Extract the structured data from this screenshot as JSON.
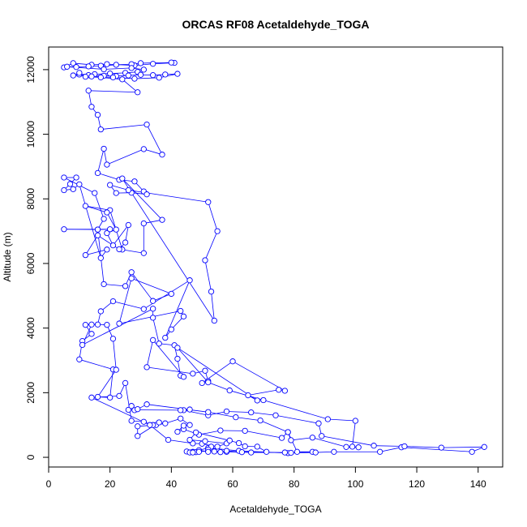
{
  "chart_data": {
    "type": "line",
    "title": "ORCAS RF08 Acetaldehyde_TOGA",
    "xlabel": "Acetaldehyde_TOGA",
    "ylabel": "Altitude (m)",
    "xlim": [
      0,
      148
    ],
    "ylim": [
      -300,
      12700
    ],
    "xticks": [
      0,
      20,
      40,
      60,
      80,
      100,
      120,
      140
    ],
    "yticks": [
      0,
      2000,
      4000,
      6000,
      8000,
      10000,
      12000
    ],
    "grid": false,
    "legend": "none",
    "series_color": "#0000ff",
    "series": [
      {
        "points": [
          [
            5,
            12070
          ],
          [
            8,
            12200
          ],
          [
            14,
            12150
          ],
          [
            19,
            12170
          ],
          [
            28,
            12130
          ],
          [
            34,
            12180
          ],
          [
            41,
            12210
          ],
          [
            40,
            12220
          ],
          [
            30,
            12200
          ],
          [
            27,
            12170
          ],
          [
            22,
            12150
          ],
          [
            17,
            12120
          ],
          [
            13,
            12100
          ],
          [
            9,
            12080
          ],
          [
            6,
            12090
          ],
          [
            18,
            12010
          ],
          [
            27,
            12050
          ],
          [
            31,
            12000
          ],
          [
            29,
            11930
          ],
          [
            25,
            11900
          ],
          [
            20,
            11880
          ],
          [
            15,
            11860
          ],
          [
            10,
            11850
          ],
          [
            13,
            11830
          ],
          [
            18,
            11810
          ],
          [
            22,
            11800
          ],
          [
            26,
            11820
          ],
          [
            30,
            11840
          ],
          [
            34,
            11830
          ],
          [
            38,
            11850
          ],
          [
            42,
            11870
          ],
          [
            36,
            11750
          ],
          [
            28,
            11720
          ],
          [
            21,
            11760
          ],
          [
            14,
            11790
          ],
          [
            8,
            11820
          ],
          [
            10,
            11900
          ],
          [
            12,
            11780
          ],
          [
            17,
            11760
          ],
          [
            24,
            11700
          ],
          [
            29,
            11300
          ],
          [
            13,
            11350
          ],
          [
            14,
            10850
          ],
          [
            16,
            10600
          ],
          [
            17,
            10150
          ],
          [
            32,
            10300
          ],
          [
            37,
            9370
          ],
          [
            31,
            9540
          ],
          [
            19,
            9060
          ],
          [
            18,
            9550
          ],
          [
            16,
            8800
          ],
          [
            23,
            8590
          ],
          [
            28,
            8540
          ],
          [
            31,
            8230
          ],
          [
            32,
            8140
          ],
          [
            27,
            8190
          ],
          [
            22,
            8180
          ],
          [
            20,
            8430
          ],
          [
            26,
            8270
          ],
          [
            52,
            7900
          ],
          [
            55,
            7000
          ],
          [
            51,
            6100
          ],
          [
            53,
            5130
          ],
          [
            54,
            4230
          ],
          [
            24,
            8630
          ],
          [
            37,
            7350
          ],
          [
            31,
            7240
          ],
          [
            31,
            6320
          ],
          [
            24,
            6430
          ],
          [
            20,
            7650
          ],
          [
            12,
            7780
          ],
          [
            19,
            7580
          ],
          [
            22,
            7050
          ],
          [
            19,
            6940
          ],
          [
            21,
            6560
          ],
          [
            26,
            7190
          ],
          [
            25,
            6650
          ],
          [
            23,
            6440
          ],
          [
            16,
            6870
          ],
          [
            12,
            6260
          ],
          [
            19,
            6430
          ],
          [
            17,
            6170
          ],
          [
            10,
            8450
          ],
          [
            8,
            8300
          ],
          [
            5,
            8270
          ],
          [
            7,
            8460
          ],
          [
            9,
            8660
          ],
          [
            5,
            8660
          ],
          [
            15,
            8180
          ],
          [
            18,
            7380
          ],
          [
            16,
            7050
          ],
          [
            20,
            7060
          ],
          [
            5,
            7060
          ],
          [
            16,
            7050
          ],
          [
            18,
            5360
          ],
          [
            25,
            5300
          ],
          [
            27,
            5730
          ],
          [
            34,
            4840
          ],
          [
            40,
            5060
          ],
          [
            27,
            5540
          ],
          [
            23,
            4140
          ],
          [
            43,
            4530
          ],
          [
            44,
            4360
          ],
          [
            40,
            3960
          ],
          [
            38,
            3700
          ],
          [
            46,
            5480
          ],
          [
            31,
            4590
          ],
          [
            21,
            4830
          ],
          [
            17,
            4520
          ],
          [
            16,
            4110
          ],
          [
            12,
            4100
          ],
          [
            14,
            3820
          ],
          [
            11,
            3600
          ],
          [
            10,
            3030
          ],
          [
            21,
            2720
          ],
          [
            20,
            1850
          ],
          [
            16,
            1870
          ],
          [
            22,
            2710
          ],
          [
            21,
            3670
          ],
          [
            19,
            4100
          ],
          [
            14,
            4110
          ],
          [
            11,
            3480
          ],
          [
            34,
            4600
          ],
          [
            34,
            4320
          ],
          [
            36,
            3520
          ],
          [
            41,
            3470
          ],
          [
            42,
            3050
          ],
          [
            43,
            2530
          ],
          [
            44,
            2490
          ],
          [
            34,
            3630
          ],
          [
            32,
            2790
          ],
          [
            47,
            2590
          ],
          [
            51,
            2680
          ],
          [
            52,
            2360
          ],
          [
            50,
            2300
          ],
          [
            60,
            2970
          ],
          [
            77,
            2060
          ],
          [
            75,
            2090
          ],
          [
            65,
            1920
          ],
          [
            68,
            1760
          ],
          [
            42,
            3390
          ],
          [
            52,
            2320
          ],
          [
            59,
            2070
          ],
          [
            70,
            1770
          ],
          [
            91,
            1180
          ],
          [
            100,
            1130
          ],
          [
            99,
            330
          ],
          [
            101,
            310
          ],
          [
            97,
            320
          ],
          [
            86,
            610
          ],
          [
            79,
            530
          ],
          [
            78,
            780
          ],
          [
            81,
            170
          ],
          [
            86,
            170
          ],
          [
            78,
            130
          ],
          [
            62,
            200
          ],
          [
            52,
            290
          ],
          [
            47,
            170
          ],
          [
            45,
            180
          ],
          [
            46,
            150
          ],
          [
            48,
            160
          ],
          [
            52,
            200
          ],
          [
            58,
            170
          ],
          [
            66,
            150
          ],
          [
            77,
            150
          ],
          [
            79,
            140
          ],
          [
            87,
            150
          ],
          [
            93,
            170
          ],
          [
            108,
            170
          ],
          [
            115,
            310
          ],
          [
            138,
            170
          ],
          [
            142,
            320
          ],
          [
            128,
            300
          ],
          [
            116,
            340
          ],
          [
            106,
            360
          ],
          [
            89,
            660
          ],
          [
            88,
            1050
          ],
          [
            74,
            1300
          ],
          [
            66,
            1390
          ],
          [
            58,
            1420
          ],
          [
            52,
            1300
          ],
          [
            44,
            1460
          ],
          [
            46,
            1480
          ],
          [
            43,
            1460
          ],
          [
            26,
            1470
          ],
          [
            27,
            1590
          ],
          [
            28,
            1460
          ],
          [
            29,
            1490
          ],
          [
            32,
            1640
          ],
          [
            52,
            1400
          ],
          [
            61,
            1240
          ],
          [
            69,
            1140
          ],
          [
            78,
            780
          ],
          [
            76,
            600
          ],
          [
            64,
            820
          ],
          [
            56,
            830
          ],
          [
            49,
            700
          ],
          [
            44,
            870
          ],
          [
            42,
            790
          ],
          [
            44,
            980
          ],
          [
            46,
            1000
          ],
          [
            43,
            1200
          ],
          [
            38,
            1050
          ],
          [
            35,
            1000
          ],
          [
            29,
            960
          ],
          [
            29,
            660
          ],
          [
            36,
            1080
          ],
          [
            34,
            1000
          ],
          [
            31,
            1100
          ],
          [
            27,
            1130
          ],
          [
            25,
            2300
          ],
          [
            23,
            1900
          ],
          [
            14,
            1850
          ],
          [
            33,
            1000
          ],
          [
            39,
            540
          ],
          [
            47,
            430
          ],
          [
            50,
            420
          ],
          [
            55,
            330
          ],
          [
            58,
            430
          ],
          [
            51,
            500
          ],
          [
            46,
            540
          ],
          [
            48,
            770
          ],
          [
            59,
            520
          ],
          [
            62,
            440
          ],
          [
            64,
            340
          ],
          [
            68,
            330
          ],
          [
            71,
            170
          ],
          [
            63,
            160
          ],
          [
            58,
            200
          ],
          [
            56,
            160
          ],
          [
            54,
            180
          ],
          [
            53,
            330
          ],
          [
            52,
            240
          ],
          [
            52,
            170
          ],
          [
            49,
            220
          ],
          [
            49,
            170
          ],
          [
            47,
            150
          ]
        ]
      }
    ]
  }
}
